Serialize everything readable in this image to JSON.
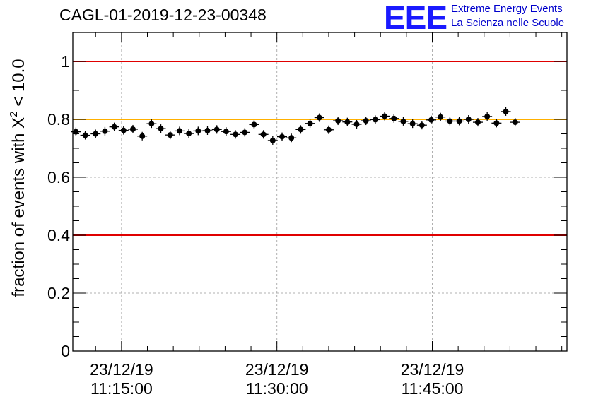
{
  "header": {
    "title": "CAGL-01-2019-12-23-00348",
    "logo_letters": "EEE",
    "logo_line1": "Extreme Energy Events",
    "logo_line2": "La Scienza nelle Scuole"
  },
  "chart_data": {
    "type": "scatter",
    "title": "CAGL-01-2019-12-23-00348",
    "ylabel_main": "fraction of events with X",
    "ylabel_sup": "2",
    "ylabel_tail": " < 10.0",
    "ylim": [
      0,
      1.1
    ],
    "yticks": [
      0,
      0.2,
      0.4,
      0.6,
      0.8,
      1
    ],
    "ytick_labels": [
      "0",
      "0.2",
      "0.4",
      "0.6",
      "0.8",
      "1"
    ],
    "xlim_minutes": [
      10.3,
      58.0
    ],
    "xticks": [
      {
        "date": "23/12/19",
        "time": "11:15:00",
        "minute": 15
      },
      {
        "date": "23/12/19",
        "time": "11:30:00",
        "minute": 30
      },
      {
        "date": "23/12/19",
        "time": "11:45:00",
        "minute": 45
      }
    ],
    "grid": true,
    "reference_lines": [
      {
        "y": 1.0,
        "color": "#e00000"
      },
      {
        "y": 0.8,
        "color": "#ffb000"
      },
      {
        "y": 0.4,
        "color": "#e00000"
      }
    ],
    "points": [
      {
        "x": 10.6,
        "y": 0.757
      },
      {
        "x": 11.5,
        "y": 0.745
      },
      {
        "x": 12.5,
        "y": 0.75
      },
      {
        "x": 13.4,
        "y": 0.759
      },
      {
        "x": 14.3,
        "y": 0.774
      },
      {
        "x": 15.2,
        "y": 0.762
      },
      {
        "x": 16.1,
        "y": 0.766
      },
      {
        "x": 17.0,
        "y": 0.742
      },
      {
        "x": 17.9,
        "y": 0.785
      },
      {
        "x": 18.8,
        "y": 0.768
      },
      {
        "x": 19.7,
        "y": 0.746
      },
      {
        "x": 20.6,
        "y": 0.76
      },
      {
        "x": 21.5,
        "y": 0.751
      },
      {
        "x": 22.4,
        "y": 0.76
      },
      {
        "x": 23.3,
        "y": 0.761
      },
      {
        "x": 24.2,
        "y": 0.765
      },
      {
        "x": 25.1,
        "y": 0.758
      },
      {
        "x": 26.0,
        "y": 0.748
      },
      {
        "x": 26.9,
        "y": 0.755
      },
      {
        "x": 27.8,
        "y": 0.782
      },
      {
        "x": 28.7,
        "y": 0.748
      },
      {
        "x": 29.6,
        "y": 0.727
      },
      {
        "x": 30.5,
        "y": 0.74
      },
      {
        "x": 31.4,
        "y": 0.736
      },
      {
        "x": 32.3,
        "y": 0.765
      },
      {
        "x": 33.2,
        "y": 0.786
      },
      {
        "x": 34.1,
        "y": 0.806
      },
      {
        "x": 35.0,
        "y": 0.764
      },
      {
        "x": 35.9,
        "y": 0.795
      },
      {
        "x": 36.8,
        "y": 0.791
      },
      {
        "x": 37.7,
        "y": 0.783
      },
      {
        "x": 38.6,
        "y": 0.795
      },
      {
        "x": 39.5,
        "y": 0.799
      },
      {
        "x": 40.4,
        "y": 0.811
      },
      {
        "x": 41.3,
        "y": 0.803
      },
      {
        "x": 42.2,
        "y": 0.793
      },
      {
        "x": 43.1,
        "y": 0.785
      },
      {
        "x": 44.0,
        "y": 0.78
      },
      {
        "x": 44.9,
        "y": 0.798
      },
      {
        "x": 45.8,
        "y": 0.808
      },
      {
        "x": 46.7,
        "y": 0.794
      },
      {
        "x": 47.6,
        "y": 0.794
      },
      {
        "x": 48.5,
        "y": 0.8
      },
      {
        "x": 49.4,
        "y": 0.79
      },
      {
        "x": 50.3,
        "y": 0.81
      },
      {
        "x": 51.2,
        "y": 0.787
      },
      {
        "x": 52.1,
        "y": 0.827
      },
      {
        "x": 53.0,
        "y": 0.79
      }
    ],
    "colors": {
      "points": "#000000",
      "grid": "#b0b0b0",
      "axis": "#000000"
    }
  }
}
